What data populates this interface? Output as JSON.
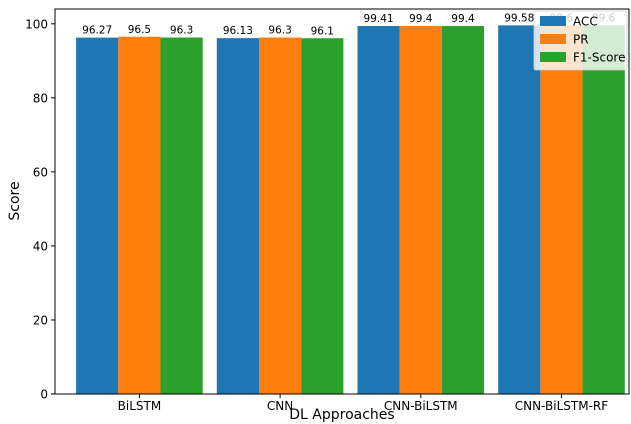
{
  "chart_data": {
    "type": "bar",
    "categories": [
      "BiLSTM",
      "CNN",
      "CNN-BiLSTM",
      "CNN-BiLSTM-RF"
    ],
    "series": [
      {
        "name": "ACC",
        "values": [
          96.27,
          96.13,
          99.41,
          99.58
        ],
        "labels": [
          "96.27",
          "96.13",
          "99.41",
          "99.58"
        ],
        "color": "#1f77b4"
      },
      {
        "name": "PR",
        "values": [
          96.5,
          96.3,
          99.4,
          99.6
        ],
        "labels": [
          "96.5",
          "96.3",
          "99.4",
          "99.6"
        ],
        "color": "#ff7f0e"
      },
      {
        "name": "F1-Score",
        "values": [
          96.3,
          96.1,
          99.4,
          99.6
        ],
        "labels": [
          "96.3",
          "96.1",
          "99.4",
          "99.6"
        ],
        "color": "#2ca02c"
      }
    ],
    "xlabel": "DL Approaches",
    "ylabel": "Score",
    "ylim": [
      0,
      104
    ],
    "yticks": [
      "0",
      "20",
      "40",
      "60",
      "80",
      "100"
    ],
    "grid": false,
    "legend_position": "top-right"
  }
}
